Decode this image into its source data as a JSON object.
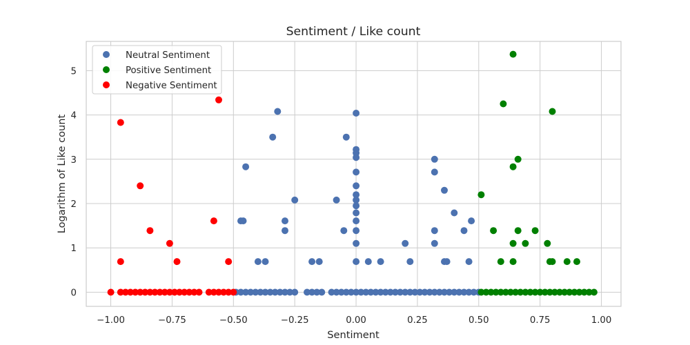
{
  "chart_data": {
    "type": "scatter",
    "title": "Sentiment / Like count",
    "xlabel": "Sentiment",
    "ylabel": "Logarithm of Like count",
    "xlim": [
      -1.1,
      1.08
    ],
    "ylim": [
      -0.32,
      5.66
    ],
    "xticks": [
      -1.0,
      -0.75,
      -0.5,
      -0.25,
      0.0,
      0.25,
      0.5,
      0.75,
      1.0
    ],
    "xtick_labels": [
      "−1.00",
      "−0.75",
      "−0.50",
      "−0.25",
      "0.00",
      "0.25",
      "0.50",
      "0.75",
      "1.00"
    ],
    "yticks": [
      0,
      1,
      2,
      3,
      4,
      5
    ],
    "ytick_labels": [
      "0",
      "1",
      "2",
      "3",
      "4",
      "5"
    ],
    "grid": true,
    "legend_position": "top-left",
    "series": [
      {
        "name": "Neutral Sentiment",
        "color": "#4c72b0",
        "points": [
          [
            -0.49,
            0
          ],
          [
            -0.47,
            0
          ],
          [
            -0.45,
            0
          ],
          [
            -0.43,
            0
          ],
          [
            -0.41,
            0
          ],
          [
            -0.39,
            0
          ],
          [
            -0.37,
            0
          ],
          [
            -0.35,
            0
          ],
          [
            -0.33,
            0
          ],
          [
            -0.31,
            0
          ],
          [
            -0.29,
            0
          ],
          [
            -0.27,
            0
          ],
          [
            -0.25,
            0
          ],
          [
            -0.2,
            0
          ],
          [
            -0.18,
            0
          ],
          [
            -0.16,
            0
          ],
          [
            -0.14,
            0
          ],
          [
            -0.1,
            0
          ],
          [
            -0.08,
            0
          ],
          [
            -0.06,
            0
          ],
          [
            -0.04,
            0
          ],
          [
            -0.02,
            0
          ],
          [
            0,
            0
          ],
          [
            0.02,
            0
          ],
          [
            0.04,
            0
          ],
          [
            0.06,
            0
          ],
          [
            0.08,
            0
          ],
          [
            0.1,
            0
          ],
          [
            0.12,
            0
          ],
          [
            0.14,
            0
          ],
          [
            0.16,
            0
          ],
          [
            0.18,
            0
          ],
          [
            0.2,
            0
          ],
          [
            0.22,
            0
          ],
          [
            0.24,
            0
          ],
          [
            0.26,
            0
          ],
          [
            0.28,
            0
          ],
          [
            0.3,
            0
          ],
          [
            0.32,
            0
          ],
          [
            0.34,
            0
          ],
          [
            0.36,
            0
          ],
          [
            0.38,
            0
          ],
          [
            0.4,
            0
          ],
          [
            0.42,
            0
          ],
          [
            0.44,
            0
          ],
          [
            0.46,
            0
          ],
          [
            0.48,
            0
          ],
          [
            0.5,
            0
          ],
          [
            -0.4,
            0.69
          ],
          [
            -0.37,
            0.69
          ],
          [
            -0.18,
            0.69
          ],
          [
            -0.15,
            0.69
          ],
          [
            0,
            0.69
          ],
          [
            0.05,
            0.69
          ],
          [
            0.1,
            0.69
          ],
          [
            0.22,
            0.69
          ],
          [
            0.36,
            0.69
          ],
          [
            0.37,
            0.69
          ],
          [
            0.46,
            0.69
          ],
          [
            -0.47,
            1.61
          ],
          [
            -0.46,
            1.61
          ],
          [
            -0.29,
            1.61
          ],
          [
            -0.29,
            1.39
          ],
          [
            -0.05,
            1.39
          ],
          [
            0,
            1.1
          ],
          [
            0.2,
            1.1
          ],
          [
            0.32,
            1.1
          ],
          [
            0.32,
            1.39
          ],
          [
            0.44,
            1.39
          ],
          [
            0.47,
            1.61
          ],
          [
            0,
            1.39
          ],
          [
            0,
            1.61
          ],
          [
            0,
            1.79
          ],
          [
            0,
            1.95
          ],
          [
            0,
            2.08
          ],
          [
            0,
            2.2
          ],
          [
            0,
            2.4
          ],
          [
            0,
            2.71
          ],
          [
            0,
            3.04
          ],
          [
            0,
            3.14
          ],
          [
            0,
            3.22
          ],
          [
            0,
            4.04
          ],
          [
            -0.25,
            2.08
          ],
          [
            -0.08,
            2.08
          ],
          [
            0.4,
            1.79
          ],
          [
            0.36,
            2.3
          ],
          [
            0.32,
            2.71
          ],
          [
            0.32,
            3.0
          ],
          [
            -0.45,
            2.83
          ],
          [
            -0.34,
            3.5
          ],
          [
            -0.04,
            3.5
          ],
          [
            -0.32,
            4.08
          ]
        ]
      },
      {
        "name": "Positive Sentiment",
        "color": "#008000",
        "points": [
          [
            0.51,
            0
          ],
          [
            0.53,
            0
          ],
          [
            0.55,
            0
          ],
          [
            0.57,
            0
          ],
          [
            0.59,
            0
          ],
          [
            0.61,
            0
          ],
          [
            0.63,
            0
          ],
          [
            0.65,
            0
          ],
          [
            0.67,
            0
          ],
          [
            0.69,
            0
          ],
          [
            0.71,
            0
          ],
          [
            0.73,
            0
          ],
          [
            0.75,
            0
          ],
          [
            0.77,
            0
          ],
          [
            0.79,
            0
          ],
          [
            0.81,
            0
          ],
          [
            0.83,
            0
          ],
          [
            0.85,
            0
          ],
          [
            0.87,
            0
          ],
          [
            0.89,
            0
          ],
          [
            0.91,
            0
          ],
          [
            0.93,
            0
          ],
          [
            0.95,
            0
          ],
          [
            0.97,
            0
          ],
          [
            0.59,
            0.69
          ],
          [
            0.64,
            0.69
          ],
          [
            0.79,
            0.69
          ],
          [
            0.8,
            0.69
          ],
          [
            0.86,
            0.69
          ],
          [
            0.9,
            0.69
          ],
          [
            0.64,
            1.1
          ],
          [
            0.69,
            1.1
          ],
          [
            0.78,
            1.1
          ],
          [
            0.56,
            1.39
          ],
          [
            0.66,
            1.39
          ],
          [
            0.73,
            1.39
          ],
          [
            0.51,
            2.2
          ],
          [
            0.64,
            2.83
          ],
          [
            0.66,
            3.0
          ],
          [
            0.6,
            4.25
          ],
          [
            0.8,
            4.08
          ],
          [
            0.64,
            5.37
          ]
        ]
      },
      {
        "name": "Negative Sentiment",
        "color": "#ff0000",
        "points": [
          [
            -1.0,
            0
          ],
          [
            -0.96,
            0
          ],
          [
            -0.94,
            0
          ],
          [
            -0.92,
            0
          ],
          [
            -0.9,
            0
          ],
          [
            -0.88,
            0
          ],
          [
            -0.86,
            0
          ],
          [
            -0.84,
            0
          ],
          [
            -0.82,
            0
          ],
          [
            -0.8,
            0
          ],
          [
            -0.78,
            0
          ],
          [
            -0.76,
            0
          ],
          [
            -0.74,
            0
          ],
          [
            -0.72,
            0
          ],
          [
            -0.7,
            0
          ],
          [
            -0.68,
            0
          ],
          [
            -0.66,
            0
          ],
          [
            -0.64,
            0
          ],
          [
            -0.6,
            0
          ],
          [
            -0.58,
            0
          ],
          [
            -0.56,
            0
          ],
          [
            -0.54,
            0
          ],
          [
            -0.52,
            0
          ],
          [
            -0.5,
            0
          ],
          [
            -0.96,
            0.69
          ],
          [
            -0.73,
            0.69
          ],
          [
            -0.52,
            0.69
          ],
          [
            -0.76,
            1.1
          ],
          [
            -0.84,
            1.39
          ],
          [
            -0.58,
            1.61
          ],
          [
            -0.88,
            2.4
          ],
          [
            -0.96,
            3.83
          ],
          [
            -0.56,
            4.34
          ]
        ]
      }
    ]
  }
}
